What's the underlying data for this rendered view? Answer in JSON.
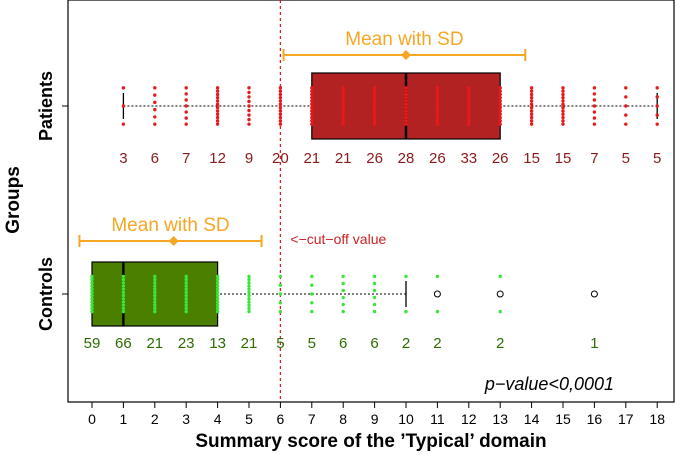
{
  "chart_data": {
    "type": "boxplot",
    "xlabel": "Summary score of the ’Typical’ domain",
    "ylabel": "Groups",
    "xlim": [
      0,
      18
    ],
    "xticks": [
      0,
      1,
      2,
      3,
      4,
      5,
      6,
      7,
      8,
      9,
      10,
      11,
      12,
      13,
      14,
      15,
      16,
      17,
      18
    ],
    "cutoff": {
      "value": 6,
      "label": "<−cut−off value",
      "color": "#cc2222"
    },
    "annotation": "p−value<0,0001",
    "groups": [
      {
        "name": "Patients",
        "color": "#b22222",
        "point_color": "#e8191a",
        "count_color": "#8b1a1a",
        "box": {
          "whisker_low": 1,
          "q1": 7,
          "median": 10,
          "q3": 13,
          "whisker_high": 18
        },
        "mean_sd": {
          "label": "Mean with SD",
          "mean": 10,
          "low": 6.1,
          "high": 13.8,
          "color": "#f5a623"
        },
        "counts": {
          "values": [
            1,
            2,
            3,
            4,
            5,
            6,
            7,
            8,
            9,
            10,
            11,
            12,
            13,
            14,
            15,
            16,
            17,
            18
          ],
          "labels": [
            "3",
            "6",
            "7",
            "12",
            "9",
            "20",
            "21",
            "21",
            "26",
            "28",
            "26",
            "33",
            "26",
            "15",
            "15",
            "7",
            "5",
            "5"
          ]
        },
        "outliers": []
      },
      {
        "name": "Controls",
        "color": "#4a7f00",
        "point_color": "#39e639",
        "count_color": "#2e6b00",
        "box": {
          "whisker_low": 0,
          "q1": 0,
          "median": 1,
          "q3": 4,
          "whisker_high": 10
        },
        "mean_sd": {
          "label": "Mean with SD",
          "mean": 2.6,
          "low": -0.4,
          "high": 5.4,
          "color": "#f5a623"
        },
        "counts": {
          "values": [
            0,
            1,
            2,
            3,
            4,
            5,
            6,
            7,
            8,
            9,
            10,
            11,
            13,
            16
          ],
          "labels": [
            "59",
            "66",
            "21",
            "23",
            "13",
            "21",
            "5",
            "5",
            "6",
            "6",
            "2",
            "2",
            "2",
            "1"
          ]
        },
        "outliers": [
          11,
          13,
          16
        ]
      }
    ]
  }
}
